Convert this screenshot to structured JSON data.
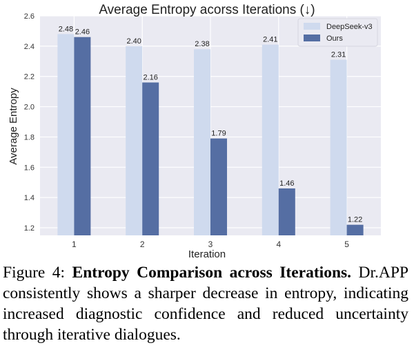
{
  "chart_data": {
    "type": "bar",
    "title": "Average Entropy acorss Iterations (↓)",
    "xlabel": "Iteration",
    "ylabel": "Average Entropy",
    "categories": [
      "1",
      "2",
      "3",
      "4",
      "5"
    ],
    "ylim": [
      1.15,
      2.6
    ],
    "yticks": [
      1.2,
      1.4,
      1.6,
      1.8,
      2.0,
      2.2,
      2.4,
      2.6
    ],
    "ytick_labels": [
      "1.2",
      "1.4",
      "1.6",
      "1.8",
      "2.0",
      "2.2",
      "2.4",
      "2.6"
    ],
    "grid": true,
    "legend_position": "top-right",
    "series": [
      {
        "name": "DeepSeek-v3",
        "color": "#cfdaee",
        "values": [
          2.48,
          2.4,
          2.38,
          2.41,
          2.31
        ],
        "labels": [
          "2.48",
          "2.40",
          "2.38",
          "2.41",
          "2.31"
        ]
      },
      {
        "name": "Ours",
        "color": "#556ea3",
        "values": [
          2.46,
          2.16,
          1.79,
          1.46,
          1.22
        ],
        "labels": [
          "2.46",
          "2.16",
          "1.79",
          "1.46",
          "1.22"
        ]
      }
    ]
  },
  "caption": {
    "label": "Figure 4:",
    "title": "Entropy Comparison across Iterations.",
    "body": "Dr.APP consistently shows a sharper decrease in entropy, indicating increased diagnostic confidence and reduced uncertainty through iterative dialogues."
  },
  "colors": {
    "plot_background": "#eaeaf2",
    "grid": "#ffffff"
  }
}
